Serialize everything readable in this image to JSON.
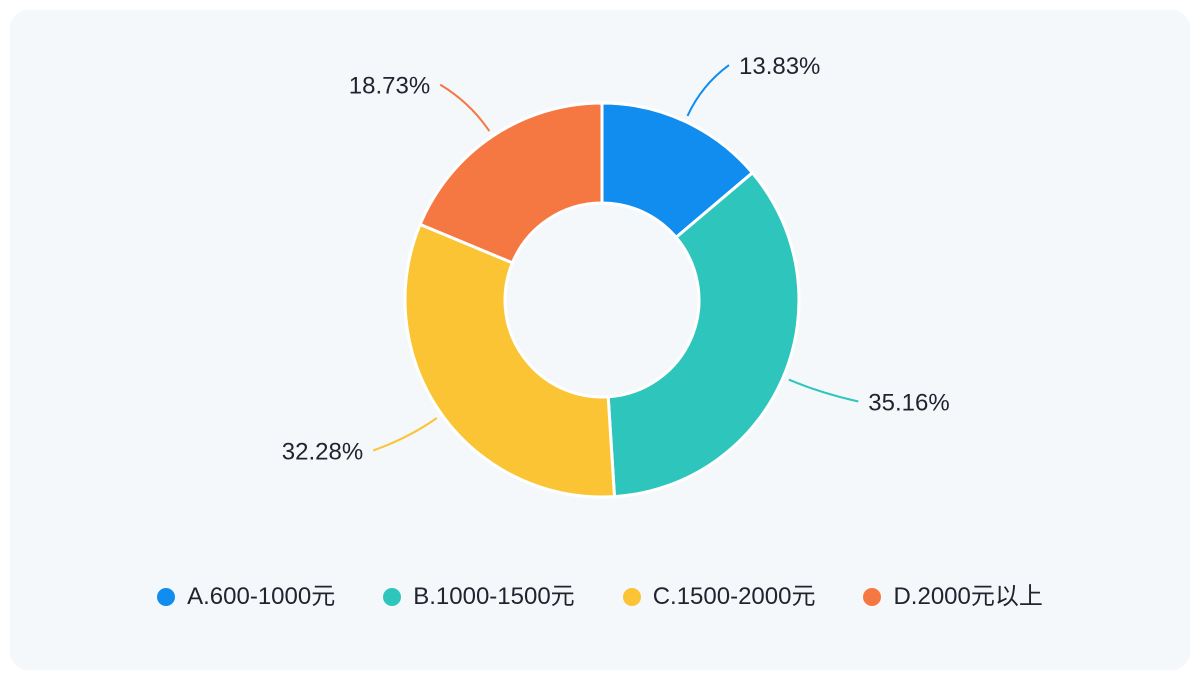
{
  "page": {
    "background": "#ffffff",
    "panel_background": "#f5f8fb"
  },
  "chart_data": {
    "type": "pie",
    "variant": "donut",
    "title": "",
    "categories": [
      "A.600-1000元",
      "B.1000-1500元",
      "C.1500-2000元",
      "D.2000元以上"
    ],
    "values": [
      13.83,
      35.16,
      32.28,
      18.73
    ],
    "percent_labels": [
      "13.83%",
      "35.16%",
      "32.28%",
      "18.73%"
    ],
    "colors": [
      "#118df0",
      "#2ec6bc",
      "#fac434",
      "#f57742"
    ],
    "start_angle_deg": 0,
    "clockwise": true,
    "inner_radius_ratio": 0.49,
    "slice_border_color": "#ffffff",
    "label_color": "#232330",
    "legend_position": "bottom"
  },
  "legend": {
    "items": [
      {
        "label": "A.600-1000元",
        "color": "#118df0"
      },
      {
        "label": "B.1000-1500元",
        "color": "#2ec6bc"
      },
      {
        "label": "C.1500-2000元",
        "color": "#fac434"
      },
      {
        "label": "D.2000元以上",
        "color": "#f57742"
      }
    ]
  }
}
